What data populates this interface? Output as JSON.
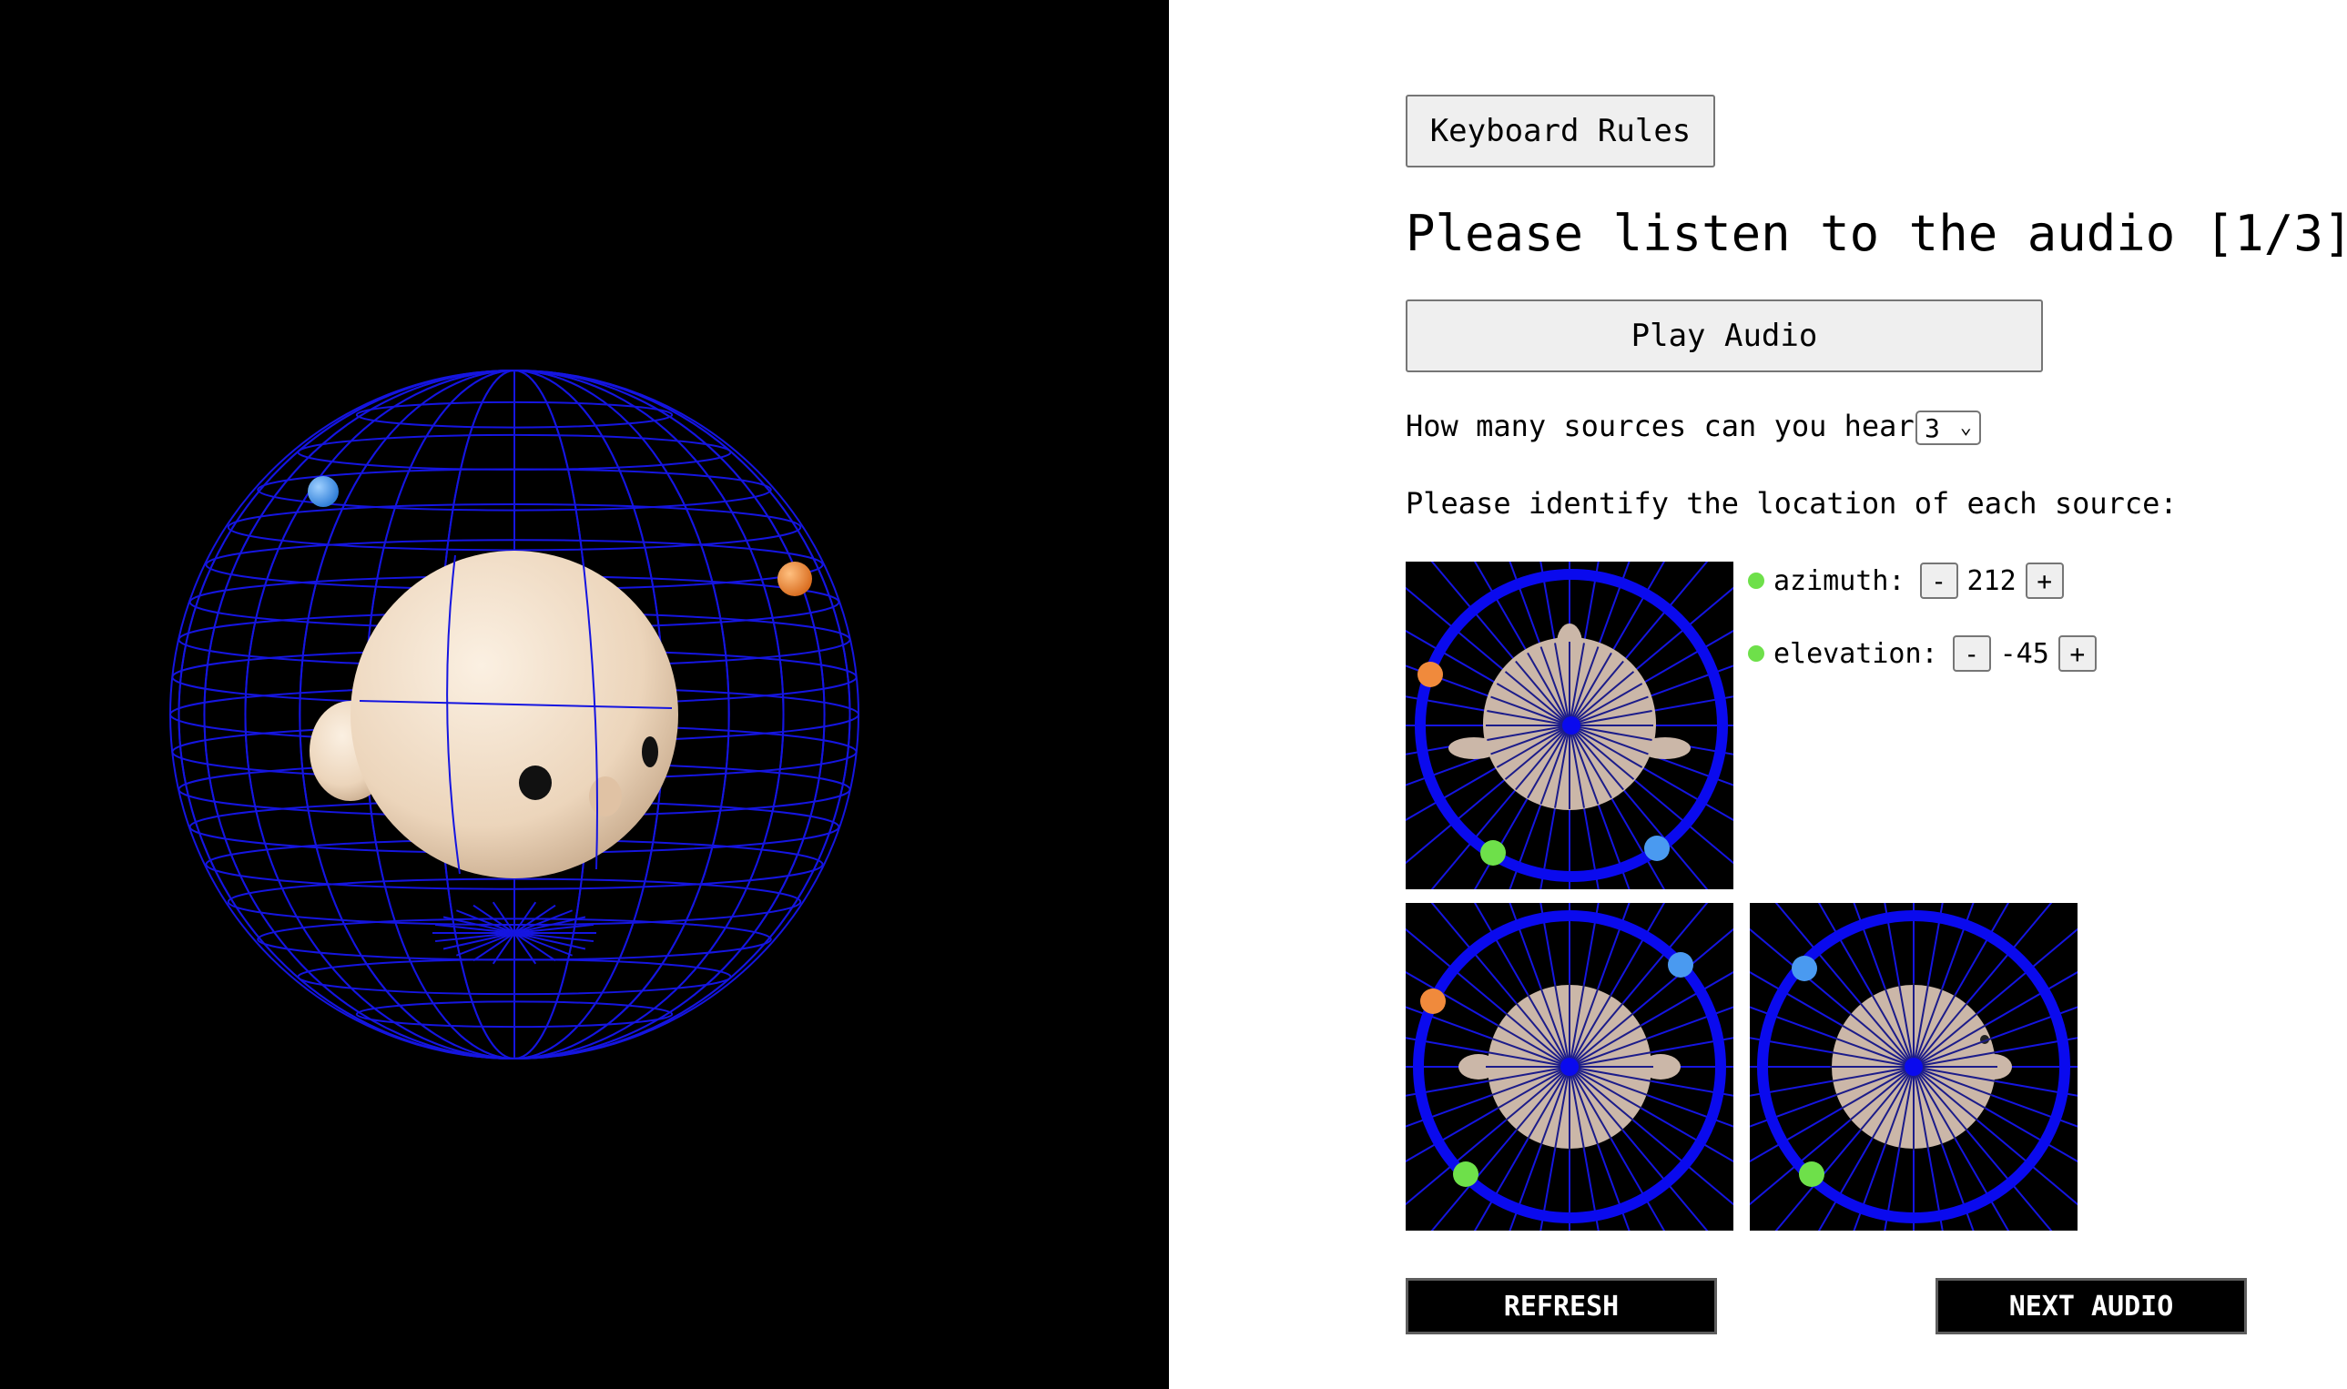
{
  "header": {
    "keyboard_rules_label": "Keyboard Rules",
    "title": "Please listen to the audio [1/3]"
  },
  "audio": {
    "play_label": "Play Audio"
  },
  "sources": {
    "question": "How many sources can you hear?",
    "selected": "3",
    "identify_label": "Please identify the location of each source:"
  },
  "controls": {
    "azimuth": {
      "label": "azimuth:",
      "value": "212",
      "minus": "-",
      "plus": "+"
    },
    "elevation": {
      "label": "elevation:",
      "value": "-45",
      "minus": "-",
      "plus": "+"
    }
  },
  "buttons": {
    "refresh": "REFRESH",
    "next": "NEXT AUDIO"
  },
  "colors": {
    "scene_bg": "#000000",
    "wireframe": "#1515e0",
    "ring": "#0a0aee",
    "head": "#f2dcc4",
    "source_blue": "#4a9af0",
    "source_orange": "#f08a3c",
    "source_green": "#6ee04a"
  },
  "icons": [
    "chevron-down-icon"
  ]
}
